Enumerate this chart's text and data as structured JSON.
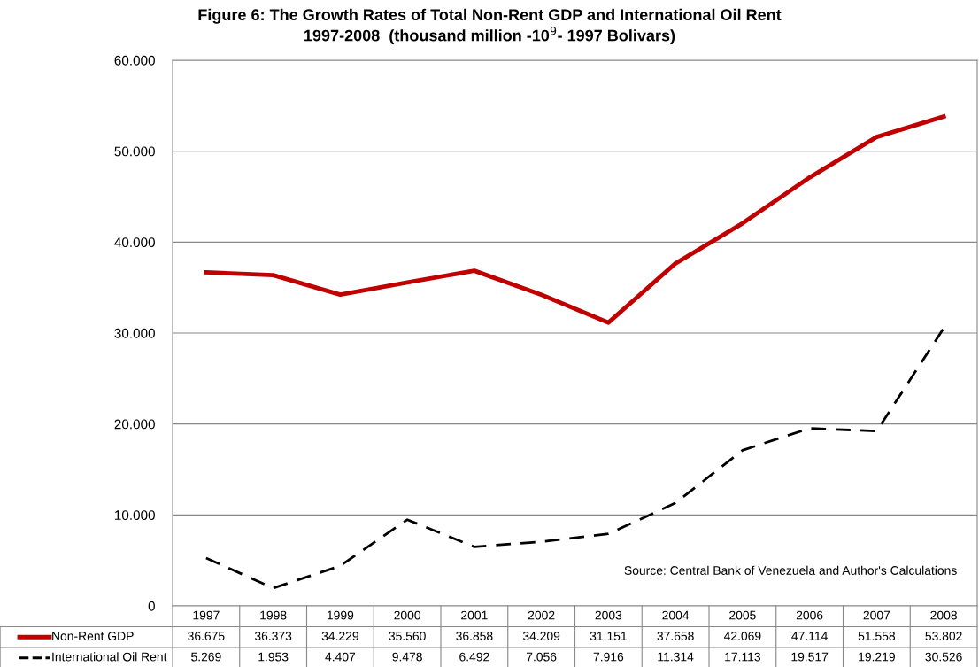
{
  "chart_data": {
    "type": "line",
    "title": "Figure 6: The Growth Rates of Total Non-Rent GDP and International Oil Rent\n1997-2008  (thousand million -10$^{9}$- 1997 Bolivars)",
    "categories": [
      "1997",
      "1998",
      "1999",
      "2000",
      "2001",
      "2002",
      "2003",
      "2004",
      "2005",
      "2006",
      "2007",
      "2008"
    ],
    "series": [
      {
        "name": "Non-Rent GDP",
        "color": "#c00000",
        "line_style": "solid",
        "values": [
          36675,
          36373,
          34229,
          35560,
          36858,
          34209,
          31151,
          37658,
          42069,
          47114,
          51558,
          53802
        ],
        "value_labels": [
          "36.675",
          "36.373",
          "34.229",
          "35.560",
          "36.858",
          "34.209",
          "31.151",
          "37.658",
          "42.069",
          "47.114",
          "51.558",
          "53.802"
        ]
      },
      {
        "name": "International Oil Rent",
        "color": "#000000",
        "line_style": "dashed",
        "values": [
          5269,
          1953,
          4407,
          9478,
          6492,
          7056,
          7916,
          11314,
          17113,
          19517,
          19219,
          30526
        ],
        "value_labels": [
          "5.269",
          "1.953",
          "4.407",
          "9.478",
          "6.492",
          "7.056",
          "7.916",
          "11.314",
          "17.113",
          "19.517",
          "19.219",
          "30.526"
        ]
      }
    ],
    "ylim": [
      0,
      60000
    ],
    "yticks": [
      0,
      {
        "value": 10000,
        "label": "10.000"
      },
      {
        "value": 20000,
        "label": "20.000"
      },
      {
        "value": 30000,
        "label": "30.000"
      },
      {
        "value": 40000,
        "label": "40.000"
      },
      {
        "value": 50000,
        "label": "50.000"
      },
      {
        "value": 60000,
        "label": "60.000"
      }
    ],
    "grid": "y",
    "legend": "bottom",
    "marker": "none",
    "annotations": [
      "Source: Central Bank of Venezuela and Author's Calculations"
    ]
  }
}
